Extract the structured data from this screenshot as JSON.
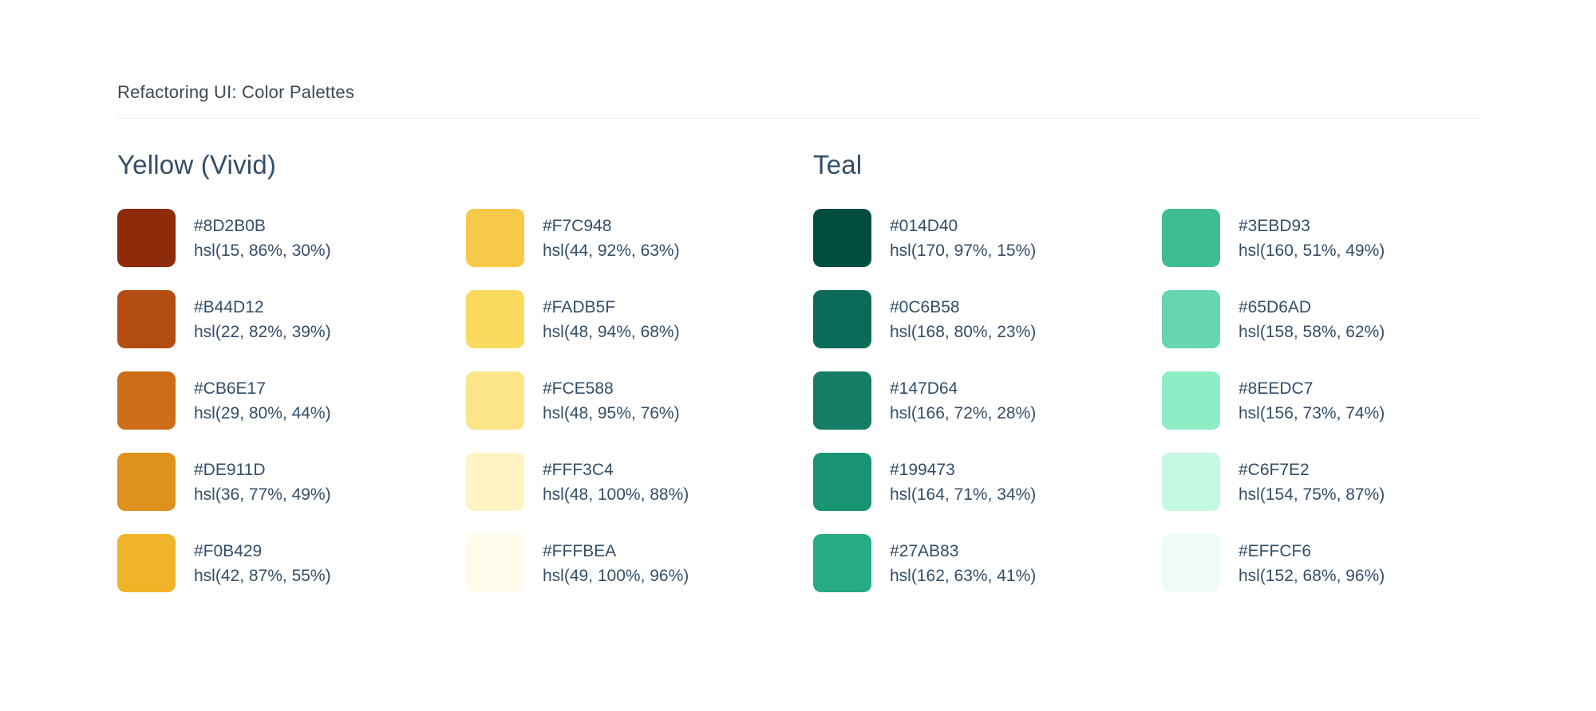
{
  "page": {
    "title": "Refactoring UI: Color Palettes"
  },
  "palettes": [
    {
      "name": "Yellow (Vivid)",
      "colors": [
        {
          "hex": "#8D2B0B",
          "hsl": "hsl(15, 86%, 30%)"
        },
        {
          "hex": "#B44D12",
          "hsl": "hsl(22, 82%, 39%)"
        },
        {
          "hex": "#CB6E17",
          "hsl": "hsl(29, 80%, 44%)"
        },
        {
          "hex": "#DE911D",
          "hsl": "hsl(36, 77%, 49%)"
        },
        {
          "hex": "#F0B429",
          "hsl": "hsl(42, 87%, 55%)"
        },
        {
          "hex": "#F7C948",
          "hsl": "hsl(44, 92%, 63%)"
        },
        {
          "hex": "#FADB5F",
          "hsl": "hsl(48, 94%, 68%)"
        },
        {
          "hex": "#FCE588",
          "hsl": "hsl(48, 95%, 76%)"
        },
        {
          "hex": "#FFF3C4",
          "hsl": "hsl(48, 100%, 88%)"
        },
        {
          "hex": "#FFFBEA",
          "hsl": "hsl(49, 100%, 96%)"
        }
      ]
    },
    {
      "name": "Teal",
      "colors": [
        {
          "hex": "#014D40",
          "hsl": "hsl(170, 97%, 15%)"
        },
        {
          "hex": "#0C6B58",
          "hsl": "hsl(168, 80%, 23%)"
        },
        {
          "hex": "#147D64",
          "hsl": "hsl(166, 72%, 28%)"
        },
        {
          "hex": "#199473",
          "hsl": "hsl(164, 71%, 34%)"
        },
        {
          "hex": "#27AB83",
          "hsl": "hsl(162, 63%, 41%)"
        },
        {
          "hex": "#3EBD93",
          "hsl": "hsl(160, 51%, 49%)"
        },
        {
          "hex": "#65D6AD",
          "hsl": "hsl(158, 58%, 62%)"
        },
        {
          "hex": "#8EEDC7",
          "hsl": "hsl(156, 73%, 74%)"
        },
        {
          "hex": "#C6F7E2",
          "hsl": "hsl(154, 75%, 87%)"
        },
        {
          "hex": "#EFFCF6",
          "hsl": "hsl(152, 68%, 96%)"
        }
      ]
    }
  ]
}
